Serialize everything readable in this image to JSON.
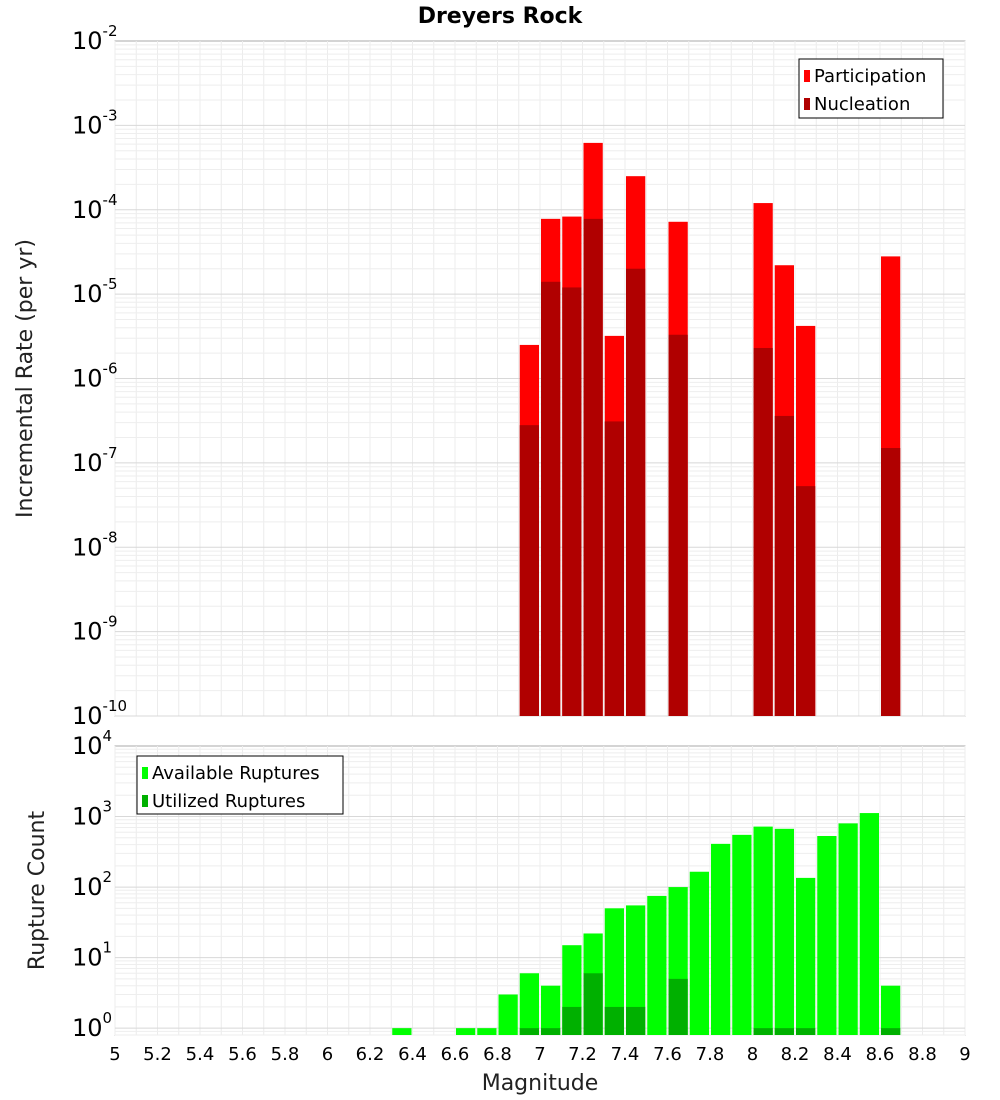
{
  "chart_data": [
    {
      "type": "bar",
      "title": "Dreyers Rock",
      "xlabel": "",
      "ylabel": "Incremental Rate (per yr)",
      "yscale": "log",
      "ylim": [
        1e-10,
        0.01
      ],
      "xlim": [
        5,
        9
      ],
      "grid": true,
      "legend_position": "top-right",
      "bin_width": 0.1,
      "series": [
        {
          "name": "Participation",
          "color": "#ff0000",
          "x": [
            6.95,
            7.05,
            7.15,
            7.25,
            7.35,
            7.45,
            7.65,
            8.05,
            8.15,
            8.25,
            8.65
          ],
          "values": [
            2.5e-06,
            7.8e-05,
            8.3e-05,
            0.00062,
            3.2e-06,
            0.00025,
            7.2e-05,
            0.00012,
            2.2e-05,
            4.2e-06,
            2.8e-05
          ]
        },
        {
          "name": "Nucleation",
          "color": "#b00000",
          "x": [
            6.95,
            7.05,
            7.15,
            7.25,
            7.35,
            7.45,
            7.65,
            8.05,
            8.15,
            8.25,
            8.65
          ],
          "values": [
            2.8e-07,
            1.4e-05,
            1.2e-05,
            7.8e-05,
            3.1e-07,
            2e-05,
            3.3e-06,
            2.3e-06,
            3.6e-07,
            5.3e-08,
            1.5e-07
          ]
        }
      ],
      "yticks": [
        "10^-10",
        "10^-9",
        "10^-8",
        "10^-7",
        "10^-6",
        "10^-5",
        "10^-4",
        "10^-3",
        "10^-2"
      ]
    },
    {
      "type": "bar",
      "title": "",
      "xlabel": "Magnitude",
      "ylabel": "Rupture Count",
      "yscale": "log",
      "ylim": [
        0.8,
        10000
      ],
      "xlim": [
        5,
        9
      ],
      "grid": true,
      "legend_position": "top-left",
      "bin_width": 0.1,
      "series": [
        {
          "name": "Available Ruptures",
          "color": "#00ff00",
          "x": [
            6.35,
            6.65,
            6.75,
            6.85,
            6.95,
            7.05,
            7.15,
            7.25,
            7.35,
            7.45,
            7.55,
            7.65,
            7.75,
            7.85,
            7.95,
            8.05,
            8.15,
            8.25,
            8.35,
            8.45,
            8.55,
            8.65
          ],
          "values": [
            1,
            1,
            1,
            3,
            6,
            4,
            15,
            22,
            50,
            55,
            75,
            100,
            165,
            410,
            550,
            720,
            670,
            135,
            530,
            800,
            1120,
            4
          ]
        },
        {
          "name": "Utilized Ruptures",
          "color": "#00b000",
          "x": [
            6.95,
            7.05,
            7.15,
            7.25,
            7.35,
            7.45,
            7.65,
            8.05,
            8.15,
            8.25,
            8.65
          ],
          "values": [
            1,
            1,
            2,
            6,
            2,
            2,
            5,
            1,
            1,
            1,
            1
          ]
        }
      ],
      "yticks": [
        "10^0",
        "10^1",
        "10^2",
        "10^3",
        "10^4"
      ]
    }
  ],
  "xticks": [
    "5",
    "5.2",
    "5.4",
    "5.6",
    "5.8",
    "6",
    "6.2",
    "6.4",
    "6.6",
    "6.8",
    "7",
    "7.2",
    "7.4",
    "7.6",
    "7.8",
    "8",
    "8.2",
    "8.4",
    "8.6",
    "8.8",
    "9"
  ]
}
